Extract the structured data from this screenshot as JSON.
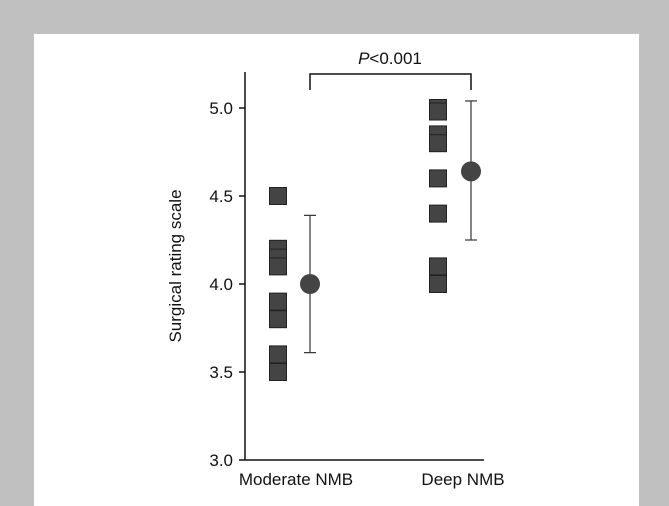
{
  "chart_data": {
    "type": "scatter",
    "title": "",
    "xlabel": "",
    "ylabel": "Surgical rating scale",
    "categories": [
      "Moderate NMB",
      "Deep NMB"
    ],
    "ylim": [
      3.0,
      5.2
    ],
    "yticks": [
      "3.0",
      "3.5",
      "4.0",
      "4.5",
      "5.0"
    ],
    "grid": false,
    "series": [
      {
        "kind": "individual",
        "marker": "square",
        "color": "#444444",
        "points": [
          {
            "category": "Moderate NMB",
            "values": [
              4.5,
              4.2,
              4.15,
              4.1,
              3.9,
              3.8,
              3.6,
              3.5
            ]
          },
          {
            "category": "Deep NMB",
            "values": [
              5.0,
              4.98,
              4.85,
              4.8,
              4.6,
              4.4,
              4.1,
              4.0
            ]
          }
        ]
      },
      {
        "kind": "mean_sd",
        "marker": "circle",
        "color": "#444444",
        "points": [
          {
            "category": "Moderate NMB",
            "mean": 4.0,
            "lower": 3.61,
            "upper": 4.39
          },
          {
            "category": "Deep NMB",
            "mean": 4.64,
            "lower": 4.25,
            "upper": 5.04
          }
        ]
      }
    ],
    "annotations": [
      {
        "text": "P<0.001",
        "between": [
          "Moderate NMB",
          "Deep NMB"
        ]
      }
    ]
  }
}
